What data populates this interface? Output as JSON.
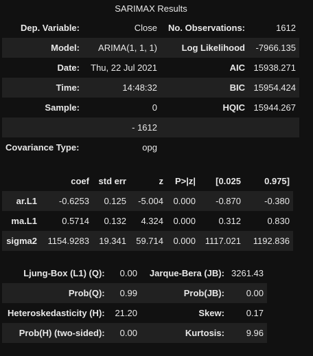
{
  "title": "SARIMAX Results",
  "summary_rows": [
    {
      "l1": "Dep. Variable:",
      "v1": "Close",
      "l2": "No. Observations:",
      "v2": "1612"
    },
    {
      "l1": "Model:",
      "v1": "ARIMA(1, 1, 1)",
      "l2": "Log Likelihood",
      "v2": "-7966.135"
    },
    {
      "l1": "Date:",
      "v1": "Thu, 22 Jul 2021",
      "l2": "AIC",
      "v2": "15938.271"
    },
    {
      "l1": "Time:",
      "v1": "14:48:32",
      "l2": "BIC",
      "v2": "15954.424"
    },
    {
      "l1": "Sample:",
      "v1": "0",
      "l2": "HQIC",
      "v2": "15944.267"
    },
    {
      "l1": "",
      "v1": "- 1612",
      "l2": "",
      "v2": ""
    },
    {
      "l1": "Covariance Type:",
      "v1": "opg",
      "l2": "",
      "v2": ""
    }
  ],
  "coef_table": {
    "headers": [
      "",
      "coef",
      "std err",
      "z",
      "P>|z|",
      "[0.025",
      "0.975]"
    ],
    "rows": [
      [
        "ar.L1",
        "-0.6253",
        "0.125",
        "-5.004",
        "0.000",
        "-0.870",
        "-0.380"
      ],
      [
        "ma.L1",
        "0.5714",
        "0.132",
        "4.324",
        "0.000",
        "0.312",
        "0.830"
      ],
      [
        "sigma2",
        "1154.9283",
        "19.341",
        "59.714",
        "0.000",
        "1117.021",
        "1192.836"
      ]
    ]
  },
  "diag_rows": [
    {
      "l1": "Ljung-Box (L1) (Q):",
      "v1": "0.00",
      "l2": "Jarque-Bera (JB):",
      "v2": "3261.43"
    },
    {
      "l1": "Prob(Q):",
      "v1": "0.99",
      "l2": "Prob(JB):",
      "v2": "0.00"
    },
    {
      "l1": "Heteroskedasticity (H):",
      "v1": "21.20",
      "l2": "Skew:",
      "v2": "0.17"
    },
    {
      "l1": "Prob(H) (two-sided):",
      "v1": "0.00",
      "l2": "Kurtosis:",
      "v2": "9.96"
    }
  ],
  "colors": {
    "background": "#111111",
    "row_stripe": "#212121",
    "text": "#e8e8e8"
  }
}
